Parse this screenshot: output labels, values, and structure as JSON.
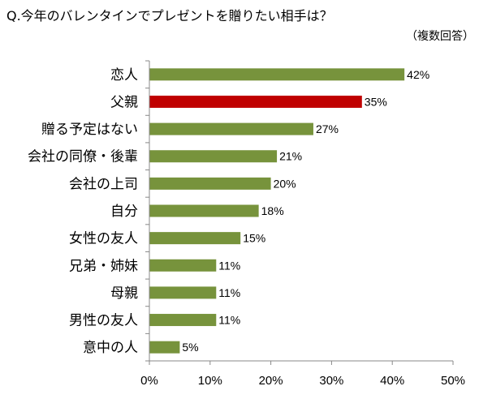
{
  "title": "Q.今年のバレンタインでプレゼントを贈りたい相手は？",
  "note": "（複数回答）",
  "colors": {
    "bar": "#77933C",
    "highlight": "#C00000",
    "axis": "#888888"
  },
  "chart_data": {
    "type": "bar",
    "orientation": "horizontal",
    "title": "Q.今年のバレンタインでプレゼントを贈りたい相手は？",
    "categories": [
      "恋人",
      "父親",
      "贈る予定はない",
      "会社の同僚・後輩",
      "会社の上司",
      "自分",
      "女性の友人",
      "兄弟・姉妹",
      "母親",
      "男性の友人",
      "意中の人"
    ],
    "values": [
      42,
      35,
      27,
      21,
      20,
      18,
      15,
      11,
      11,
      11,
      5
    ],
    "value_labels": [
      "42%",
      "35%",
      "27%",
      "21%",
      "20%",
      "18%",
      "15%",
      "11%",
      "11%",
      "11%",
      "5%"
    ],
    "highlight_index": 1,
    "xlim": [
      0,
      50
    ],
    "xticks": [
      "0%",
      "10%",
      "20%",
      "30%",
      "40%",
      "50%"
    ],
    "grid": false,
    "legend": "none"
  }
}
